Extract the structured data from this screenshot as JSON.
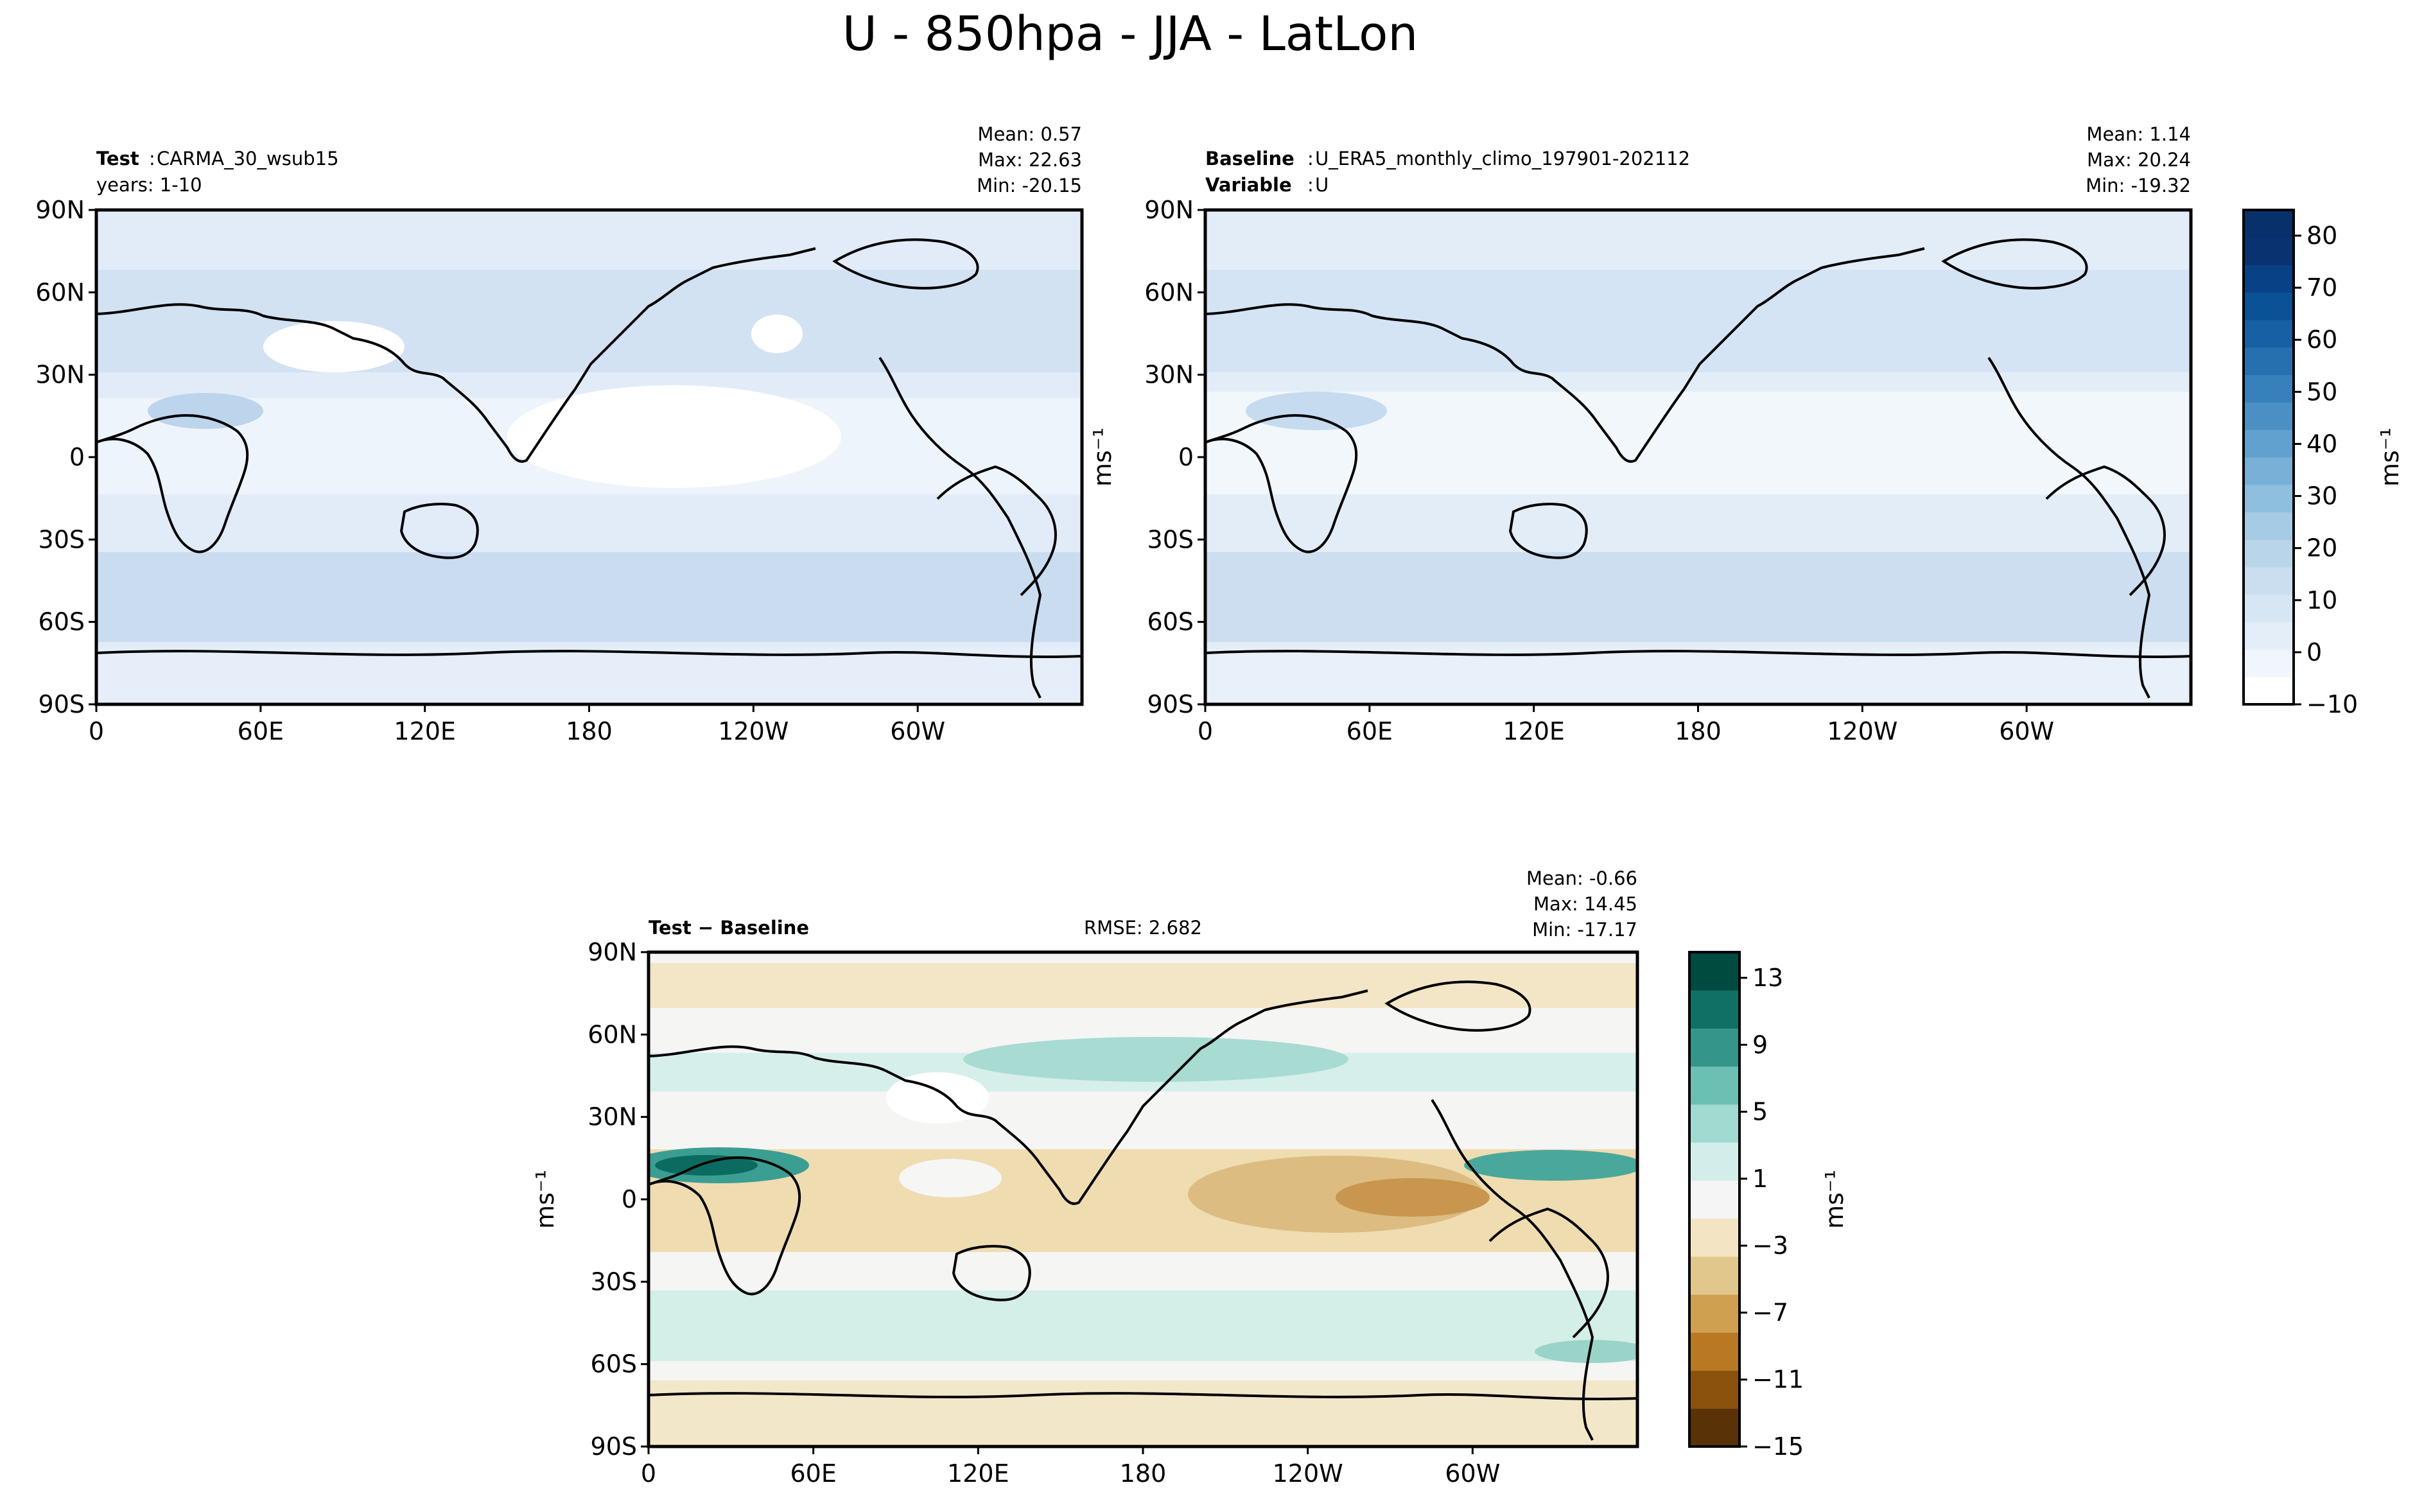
{
  "title": "U - 850hpa - JJA - LatLon",
  "lat_ticks": [
    "90N",
    "60N",
    "30N",
    "0",
    "30S",
    "60S",
    "90S"
  ],
  "lon_ticks": [
    "0",
    "60E",
    "120E",
    "180",
    "120W",
    "60W"
  ],
  "unit_label": "ms⁻¹",
  "panels": {
    "test": {
      "label_bold": "Test",
      "label_text": "CARMA_30_wsub15",
      "years": "years: 1-10",
      "mean": "Mean:  0.57",
      "max": "Max: 22.63",
      "min": "Min: -20.15"
    },
    "baseline": {
      "label_bold": "Baseline",
      "label_text": "U_ERA5_monthly_climo_197901-202112",
      "var_bold": "Variable",
      "var_text": "U",
      "mean": "Mean:  1.14",
      "max": "Max: 20.24",
      "min": "Min: -19.32"
    },
    "diff": {
      "label": "Test − Baseline",
      "rmse": "RMSE: 2.682",
      "mean": "Mean: -0.66",
      "max": "Max: 14.45",
      "min": "Min: -17.17"
    }
  },
  "colorbar_top": {
    "ticks": [
      "80",
      "70",
      "60",
      "50",
      "40",
      "30",
      "20",
      "10",
      "0",
      "−10"
    ],
    "colors": [
      "#ffffff",
      "#f1f6fc",
      "#e3eef9",
      "#d6e6f4",
      "#cadef0",
      "#b9d5ea",
      "#a6cbe4",
      "#8fbfdf",
      "#78b0d8",
      "#60a1cf",
      "#4a90c4",
      "#3780bb",
      "#2670b0",
      "#1760a4",
      "#0b5196",
      "#084185",
      "#083370",
      "#08306b"
    ]
  },
  "colorbar_diff": {
    "ticks": [
      "13",
      "9",
      "5",
      "1",
      "−3",
      "−7",
      "−11",
      "−15"
    ],
    "colors": [
      "#5a3207",
      "#8b520e",
      "#b97824",
      "#cfa04f",
      "#e2c78c",
      "#f3e5c3",
      "#f5f5f5",
      "#d3eeea",
      "#a0dad0",
      "#6bbfb3",
      "#34958b",
      "#107065",
      "#004b40"
    ]
  }
}
